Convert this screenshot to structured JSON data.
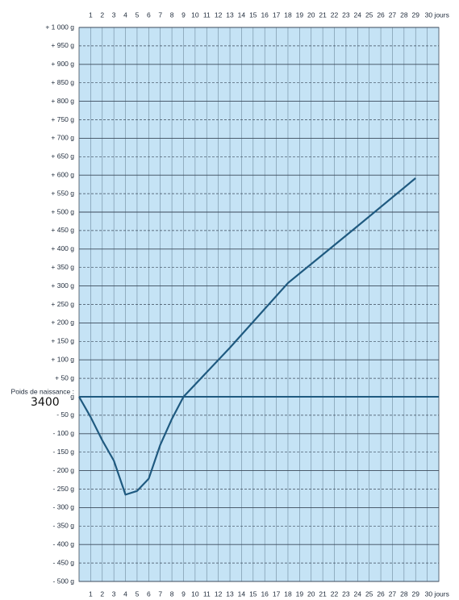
{
  "chart_data": {
    "type": "line",
    "birth_weight_label": "Poids de naissance :",
    "birth_weight": "3400",
    "x": [
      0,
      1,
      2,
      3,
      4,
      5,
      6,
      7,
      8,
      9,
      13,
      18,
      24,
      29
    ],
    "values": [
      0,
      -55,
      -118,
      -173,
      -265,
      -255,
      -222,
      -130,
      -60,
      0,
      133,
      308,
      462,
      592
    ],
    "color": "#1f5a80",
    "background": "#c5e3f5",
    "grid": true,
    "xlim": [
      0,
      31
    ],
    "ylim": [
      -500,
      1000
    ],
    "xticks": [
      1,
      2,
      3,
      4,
      5,
      6,
      7,
      8,
      9,
      10,
      11,
      12,
      13,
      14,
      15,
      16,
      17,
      18,
      19,
      20,
      21,
      22,
      23,
      24,
      25,
      26,
      27,
      28,
      29,
      {
        "value": 30,
        "label": "30 jours"
      }
    ],
    "yticks": [
      {
        "value": 1000,
        "label": "+ 1 000 g"
      },
      {
        "value": 950,
        "label": "+ 950 g"
      },
      {
        "value": 900,
        "label": "+ 900 g"
      },
      {
        "value": 850,
        "label": "+ 850 g"
      },
      {
        "value": 800,
        "label": "+ 800 g"
      },
      {
        "value": 750,
        "label": "+ 750 g"
      },
      {
        "value": 700,
        "label": "+ 700 g"
      },
      {
        "value": 650,
        "label": "+ 650 g"
      },
      {
        "value": 600,
        "label": "+ 600 g"
      },
      {
        "value": 550,
        "label": "+ 550 g"
      },
      {
        "value": 500,
        "label": "+ 500 g"
      },
      {
        "value": 450,
        "label": "+ 450 g"
      },
      {
        "value": 400,
        "label": "+ 400 g"
      },
      {
        "value": 350,
        "label": "+ 350 g"
      },
      {
        "value": 300,
        "label": "+ 300 g"
      },
      {
        "value": 250,
        "label": "+ 250 g"
      },
      {
        "value": 200,
        "label": "+ 200 g"
      },
      {
        "value": 150,
        "label": "+ 150 g"
      },
      {
        "value": 100,
        "label": "+ 100 g"
      },
      {
        "value": 50,
        "label": "+ 50 g"
      },
      {
        "value": 0,
        "label": "g"
      },
      {
        "value": -50,
        "label": "- 50 g"
      },
      {
        "value": -100,
        "label": "- 100 g"
      },
      {
        "value": -150,
        "label": "- 150 g"
      },
      {
        "value": -200,
        "label": "- 200 g"
      },
      {
        "value": -250,
        "label": "- 250 g"
      },
      {
        "value": -300,
        "label": "- 300 g"
      },
      {
        "value": -350,
        "label": "- 350 g"
      },
      {
        "value": -400,
        "label": "- 400 g"
      },
      {
        "value": -450,
        "label": "- 450 g"
      },
      {
        "value": -500,
        "label": "- 500 g"
      }
    ]
  }
}
